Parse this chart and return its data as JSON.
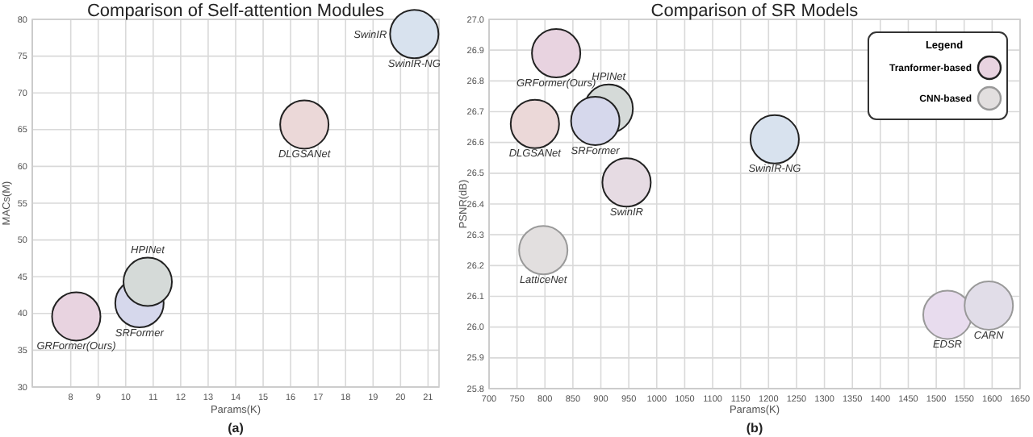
{
  "chart_data": [
    {
      "type": "scatter",
      "title": "Comparison of Self-attention Modules",
      "xlabel": "Params(K)",
      "ylabel": "MACs(M)",
      "xlim": [
        6.6,
        21.4
      ],
      "ylim": [
        30,
        80
      ],
      "xticks": [
        8,
        9,
        10,
        11,
        12,
        13,
        14,
        15,
        16,
        17,
        18,
        19,
        20,
        21
      ],
      "yticks": [
        30,
        35,
        40,
        45,
        50,
        55,
        60,
        65,
        70,
        75,
        80
      ],
      "grid": true,
      "marker": "circle",
      "legend": false,
      "series": [
        {
          "color": "#222222",
          "x": [
            8.2,
            10.5,
            10.8,
            16.5,
            20.5
          ],
          "values": [
            39.6,
            41.4,
            44.3,
            65.7,
            78
          ],
          "colors": [
            "#e8d3e0",
            "#d6d8ec",
            "#d5dad8",
            "#ebd8d8",
            "#d8e2ee"
          ]
        }
      ],
      "annotations": [
        {
          "text": "GRFormer(Ours)",
          "x": 8.2,
          "y": 39.6
        },
        {
          "text": "SRFormer",
          "x": 10.5,
          "y": 41.4
        },
        {
          "text": "HPINet",
          "x": 10.8,
          "y": 44.3
        },
        {
          "text": "DLGSANet",
          "x": 16.5,
          "y": 65.7
        },
        {
          "text": "SwinIR-NG",
          "x": 20.5,
          "y": 78
        },
        {
          "text": "SwinIR",
          "x": 20.5,
          "y": 78
        },
        "(a)"
      ]
    },
    {
      "type": "scatter",
      "title": "Comparison of SR Models",
      "xlabel": "Params(K)",
      "ylabel": "PSNR(dB)",
      "xlim": [
        700,
        1650
      ],
      "ylim": [
        25.8,
        27.0
      ],
      "xticks": [
        700,
        750,
        800,
        850,
        900,
        950,
        1000,
        1050,
        1100,
        1150,
        1200,
        1250,
        1300,
        1350,
        1400,
        1450,
        1500,
        1550,
        1600,
        1650
      ],
      "yticks": [
        25.8,
        25.9,
        {
          "value": 26,
          "label": "26.0"
        },
        26.1,
        26.2,
        26.3,
        26.4,
        26.5,
        26.6,
        26.7,
        26.8,
        26.9,
        {
          "value": 27,
          "label": "27.0"
        }
      ],
      "grid": true,
      "marker": "circle",
      "legend": "top right",
      "legend_title": "Legend",
      "series": [
        {
          "name": "Tranformer-based",
          "color": "#222222",
          "x": [
            820,
            914,
            782,
            890,
            1211,
            946
          ],
          "values": [
            26.89,
            26.71,
            26.66,
            26.67,
            26.61,
            26.47
          ],
          "colors": [
            "#e8d3e0",
            "#d5dad8",
            "#ebd8d8",
            "#d6d8ec",
            "#d8e2ee",
            "#e6dbe3"
          ]
        },
        {
          "name": "CNN-based",
          "color": "#999999",
          "x": [
            797,
            1520,
            1594
          ],
          "values": [
            26.25,
            26.04,
            26.07
          ],
          "colors": [
            "#e2dfdf",
            "#e8dcee",
            "#e1dde8"
          ]
        }
      ],
      "annotations": [
        {
          "text": "GRFormer(Ours)",
          "x": 820,
          "y": 26.89
        },
        {
          "text": "HPINet",
          "x": 914,
          "y": 26.71
        },
        {
          "text": "DLGSANet",
          "x": 782,
          "y": 26.66
        },
        {
          "text": "SRFormer",
          "x": 890,
          "y": 26.67
        },
        {
          "text": "SwinIR-NG",
          "x": 1211,
          "y": 26.61
        },
        {
          "text": "SwinIR",
          "x": 946,
          "y": 26.47
        },
        {
          "text": "LatticeNet",
          "x": 797,
          "y": 26.25
        },
        {
          "text": "EDSR",
          "x": 1520,
          "y": 26.04
        },
        {
          "text": "CARN",
          "x": 1594,
          "y": 26.07
        },
        "(b)"
      ]
    }
  ]
}
